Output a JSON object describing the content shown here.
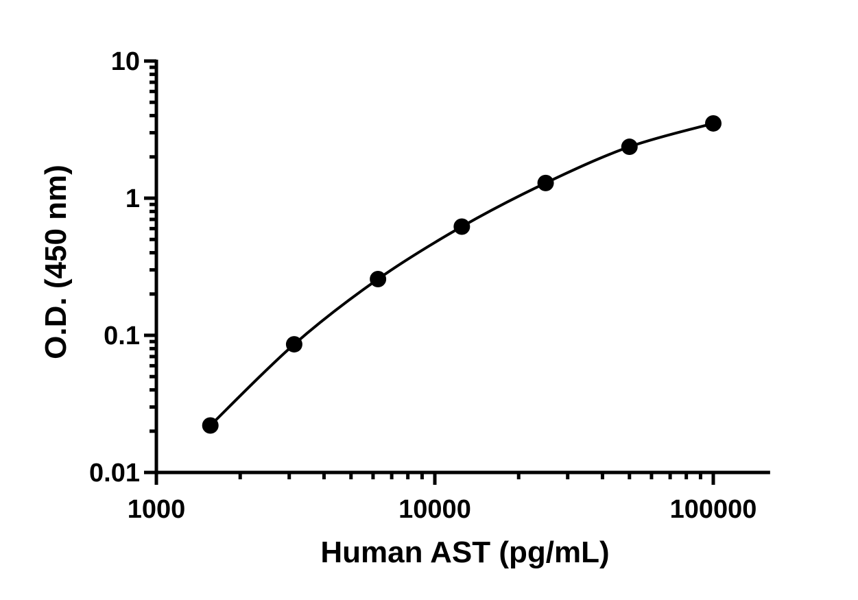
{
  "chart_data": {
    "type": "scatter",
    "title": "",
    "xlabel": "Human AST (pg/mL)",
    "ylabel": "O.D. (450 nm)",
    "x_scale": "log",
    "y_scale": "log",
    "xlim": [
      1000,
      160000
    ],
    "ylim": [
      0.01,
      10
    ],
    "x_ticks": [
      {
        "value": 1000,
        "label": "1000"
      },
      {
        "value": 10000,
        "label": "10000"
      },
      {
        "value": 100000,
        "label": "100000"
      }
    ],
    "y_ticks": [
      {
        "value": 0.01,
        "label": "0.01"
      },
      {
        "value": 0.1,
        "label": "0.1"
      },
      {
        "value": 1,
        "label": "1"
      },
      {
        "value": 10,
        "label": "10"
      }
    ],
    "grid": false,
    "fit_curve": true,
    "color": "#000000",
    "series": [
      {
        "x": [
          1562.5,
          3125,
          6250,
          12500,
          25000,
          50000,
          100000
        ],
        "y": [
          0.022,
          0.086,
          0.257,
          0.62,
          1.29,
          2.37,
          3.51
        ]
      }
    ]
  }
}
